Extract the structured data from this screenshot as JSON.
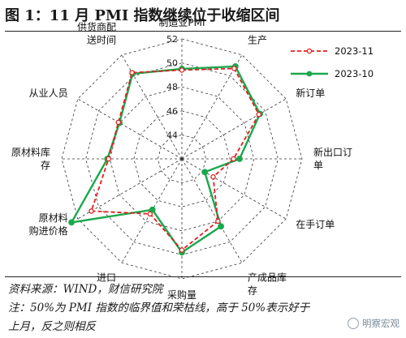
{
  "header": {
    "title": "图 1：11 月 PMI 指数继续位于收缩区间"
  },
  "chart_data": {
    "type": "radar",
    "axes": [
      {
        "lines": [
          "制造业PMI"
        ]
      },
      {
        "lines": [
          "生产"
        ]
      },
      {
        "lines": [
          "新订单"
        ]
      },
      {
        "lines": [
          "新出口订",
          "单"
        ]
      },
      {
        "lines": [
          "在手订单"
        ]
      },
      {
        "lines": [
          "产成品库",
          "存"
        ]
      },
      {
        "lines": [
          "采购量"
        ]
      },
      {
        "lines": [
          "进口"
        ]
      },
      {
        "lines": [
          "原材料",
          "购进价格"
        ]
      },
      {
        "lines": [
          "原材料库",
          "存"
        ]
      },
      {
        "lines": [
          "从业人员"
        ]
      },
      {
        "lines": [
          "供货商配",
          "送时间"
        ]
      }
    ],
    "ticks": [
      44,
      46,
      48,
      50,
      52
    ],
    "range": [
      42,
      52
    ],
    "grid": true,
    "legend_position": "top-right",
    "series": [
      {
        "name": "2023-11",
        "color": "#e02020",
        "dash": true,
        "values": [
          49.4,
          50.7,
          49.4,
          46.3,
          45.0,
          48.0,
          49.6,
          47.3,
          50.7,
          48.1,
          48.1,
          50.3
        ]
      },
      {
        "name": "2023-10",
        "color": "#1aa84c",
        "dash": false,
        "values": [
          49.5,
          50.9,
          49.5,
          46.8,
          44.2,
          48.5,
          49.8,
          46.9,
          52.6,
          48.2,
          48.0,
          50.2
        ]
      }
    ]
  },
  "footer": {
    "source": "资料来源：WIND，财信研究院",
    "note_line1": "注：50%为 PMI 指数的临界值和荣枯线，高于 50%表示好于",
    "note_line2": "上月，反之则相反",
    "watermark": "明察宏观"
  }
}
